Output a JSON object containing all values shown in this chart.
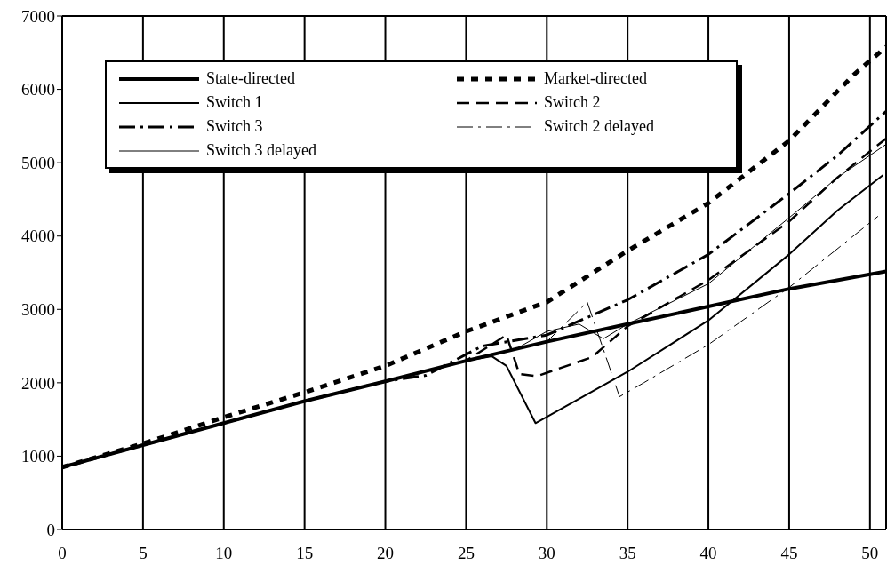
{
  "chart_data": {
    "type": "line",
    "xlim": [
      0,
      51
    ],
    "xticks": [
      0,
      5,
      10,
      15,
      20,
      25,
      30,
      35,
      40,
      45,
      50
    ],
    "ylim": [
      0,
      7000
    ],
    "yticks": [
      0,
      1000,
      2000,
      3000,
      4000,
      5000,
      6000,
      7000
    ],
    "grid": "x",
    "legend": "top left",
    "marker": "none",
    "series": [
      {
        "name": "State-directed",
        "color": "#000000",
        "line_style": "solid",
        "x": [
          0,
          5,
          10,
          15,
          20,
          25,
          30,
          35,
          40,
          45,
          51
        ],
        "values": [
          850,
          1150,
          1450,
          1750,
          2020,
          2300,
          2560,
          2800,
          3040,
          3280,
          3520
        ]
      },
      {
        "name": "Market-directed",
        "color": "#000000",
        "line_style": "dotted",
        "x": [
          0,
          5,
          10,
          15,
          20,
          25,
          30,
          35,
          40,
          45,
          49,
          51
        ],
        "values": [
          850,
          1170,
          1530,
          1870,
          2230,
          2700,
          3100,
          3800,
          4450,
          5300,
          6200,
          6580
        ]
      },
      {
        "name": "Switch 1",
        "color": "#000000",
        "line_style": "solid",
        "x": [
          0,
          5,
          10,
          15,
          20,
          25,
          26.6,
          27.5,
          29.3,
          35,
          40,
          45,
          48,
          50.8
        ],
        "values": [
          850,
          1150,
          1450,
          1750,
          2020,
          2300,
          2360,
          2230,
          1450,
          2150,
          2850,
          3750,
          4350,
          4830
        ]
      },
      {
        "name": "Switch 2",
        "color": "#000000",
        "line_style": "dashed",
        "x": [
          0,
          5,
          10,
          15,
          20,
          25,
          27.5,
          28.3,
          29.4,
          32.8,
          35,
          40,
          45,
          48,
          51
        ],
        "values": [
          850,
          1150,
          1450,
          1750,
          2020,
          2300,
          2650,
          2120,
          2090,
          2350,
          2770,
          3400,
          4200,
          4800,
          5330
        ]
      },
      {
        "name": "Switch 3",
        "color": "#000000",
        "line_style": "dashdot",
        "x": [
          0,
          5,
          10,
          15,
          20,
          22.5,
          26,
          30,
          35,
          40,
          45,
          48,
          51
        ],
        "values": [
          850,
          1150,
          1450,
          1750,
          2020,
          2100,
          2500,
          2650,
          3130,
          3750,
          4580,
          5100,
          5700
        ]
      },
      {
        "name": "Switch 2 delayed",
        "color": "#000000",
        "line_style": "dashdot",
        "x": [
          0,
          5,
          10,
          15,
          20,
          25,
          30,
          32.5,
          34.5,
          36,
          40,
          45,
          50.5
        ],
        "values": [
          850,
          1150,
          1450,
          1750,
          2020,
          2300,
          2560,
          3100,
          1810,
          2000,
          2520,
          3300,
          4270
        ]
      },
      {
        "name": "Switch 3 delayed",
        "color": "#000000",
        "line_style": "solid",
        "x": [
          0,
          5,
          10,
          15,
          20,
          25,
          28,
          30,
          32,
          33.5,
          35,
          40,
          45,
          48,
          51
        ],
        "values": [
          850,
          1150,
          1450,
          1750,
          2020,
          2300,
          2450,
          2700,
          2800,
          2600,
          2800,
          3350,
          4250,
          4800,
          5250
        ]
      }
    ]
  }
}
